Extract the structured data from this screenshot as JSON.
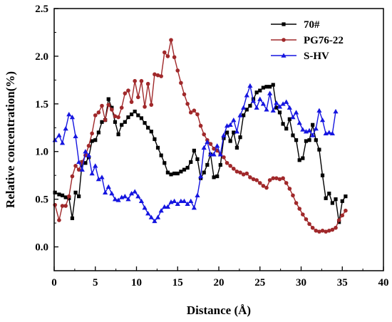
{
  "chart_data": {
    "type": "line",
    "title": "",
    "xlabel": "Distance (Å)",
    "ylabel": "Relative concentration(%)",
    "xlim": [
      0,
      40
    ],
    "ylim": [
      -0.25,
      2.5
    ],
    "x_ticks": [
      0,
      5,
      10,
      15,
      20,
      25,
      30,
      35,
      40
    ],
    "y_ticks": [
      0.0,
      0.5,
      1.0,
      1.5,
      2.0,
      2.5
    ],
    "x_tick_labels": [
      "0",
      "5",
      "10",
      "15",
      "20",
      "25",
      "30",
      "35",
      "40"
    ],
    "y_tick_labels": [
      "0.0",
      "0.5",
      "1.0",
      "1.5",
      "2.0",
      "2.5"
    ],
    "grid": false,
    "legend_position": "top-right",
    "series": [
      {
        "name": "70#",
        "color": "#000000",
        "marker": "square",
        "points": [
          [
            0.1,
            0.57
          ],
          [
            0.6,
            0.55
          ],
          [
            1.0,
            0.54
          ],
          [
            1.4,
            0.52
          ],
          [
            1.8,
            0.51
          ],
          [
            2.2,
            0.3
          ],
          [
            2.6,
            0.57
          ],
          [
            3.0,
            0.53
          ],
          [
            3.4,
            0.89
          ],
          [
            3.8,
            0.88
          ],
          [
            4.2,
            0.94
          ],
          [
            4.6,
            1.11
          ],
          [
            5.0,
            1.12
          ],
          [
            5.4,
            1.2
          ],
          [
            5.8,
            1.31
          ],
          [
            6.2,
            1.33
          ],
          [
            6.6,
            1.55
          ],
          [
            7.0,
            1.46
          ],
          [
            7.4,
            1.31
          ],
          [
            7.8,
            1.18
          ],
          [
            8.2,
            1.28
          ],
          [
            8.6,
            1.31
          ],
          [
            9.0,
            1.36
          ],
          [
            9.4,
            1.39
          ],
          [
            9.8,
            1.42
          ],
          [
            10.2,
            1.38
          ],
          [
            10.6,
            1.35
          ],
          [
            11.0,
            1.3
          ],
          [
            11.4,
            1.25
          ],
          [
            11.8,
            1.21
          ],
          [
            12.2,
            1.13
          ],
          [
            12.6,
            1.04
          ],
          [
            13.0,
            0.96
          ],
          [
            13.4,
            0.88
          ],
          [
            13.8,
            0.78
          ],
          [
            14.2,
            0.76
          ],
          [
            14.6,
            0.77
          ],
          [
            15.0,
            0.77
          ],
          [
            15.4,
            0.79
          ],
          [
            15.8,
            0.81
          ],
          [
            16.2,
            0.83
          ],
          [
            16.6,
            0.89
          ],
          [
            17.0,
            1.01
          ],
          [
            17.4,
            0.92
          ],
          [
            17.8,
            0.72
          ],
          [
            18.2,
            0.78
          ],
          [
            18.6,
            0.86
          ],
          [
            19.0,
            0.97
          ],
          [
            19.4,
            0.73
          ],
          [
            19.8,
            0.74
          ],
          [
            20.2,
            0.86
          ],
          [
            20.6,
            1.14
          ],
          [
            21.0,
            1.2
          ],
          [
            21.4,
            1.11
          ],
          [
            21.8,
            1.2
          ],
          [
            22.2,
            1.04
          ],
          [
            22.6,
            1.15
          ],
          [
            23.0,
            1.38
          ],
          [
            23.4,
            1.44
          ],
          [
            23.8,
            1.48
          ],
          [
            24.2,
            1.55
          ],
          [
            24.6,
            1.62
          ],
          [
            25.0,
            1.64
          ],
          [
            25.4,
            1.67
          ],
          [
            25.8,
            1.68
          ],
          [
            26.2,
            1.68
          ],
          [
            26.6,
            1.7
          ],
          [
            27.0,
            1.46
          ],
          [
            27.4,
            1.41
          ],
          [
            27.8,
            1.29
          ],
          [
            28.2,
            1.24
          ],
          [
            28.6,
            1.34
          ],
          [
            29.0,
            1.17
          ],
          [
            29.4,
            1.12
          ],
          [
            29.8,
            0.91
          ],
          [
            30.2,
            0.93
          ],
          [
            30.6,
            1.11
          ],
          [
            31.0,
            1.12
          ],
          [
            31.4,
            1.28
          ],
          [
            31.8,
            1.12
          ],
          [
            32.2,
            1.02
          ],
          [
            32.6,
            0.75
          ],
          [
            33.0,
            0.51
          ],
          [
            33.4,
            0.56
          ],
          [
            33.8,
            0.46
          ],
          [
            34.2,
            0.5
          ],
          [
            34.6,
            0.26
          ],
          [
            35.0,
            0.48
          ],
          [
            35.4,
            0.53
          ]
        ]
      },
      {
        "name": "PG76-22",
        "color": "#a0282a",
        "marker": "circle",
        "points": [
          [
            0.1,
            0.44
          ],
          [
            0.6,
            0.28
          ],
          [
            1.0,
            0.43
          ],
          [
            1.4,
            0.43
          ],
          [
            1.8,
            0.53
          ],
          [
            2.2,
            0.74
          ],
          [
            2.6,
            0.85
          ],
          [
            3.0,
            0.81
          ],
          [
            3.4,
            0.89
          ],
          [
            3.8,
            0.96
          ],
          [
            4.2,
            1.06
          ],
          [
            4.6,
            1.19
          ],
          [
            5.0,
            1.38
          ],
          [
            5.4,
            1.41
          ],
          [
            5.8,
            1.48
          ],
          [
            6.2,
            1.33
          ],
          [
            6.6,
            1.49
          ],
          [
            7.0,
            1.44
          ],
          [
            7.4,
            1.37
          ],
          [
            7.8,
            1.36
          ],
          [
            8.2,
            1.46
          ],
          [
            8.6,
            1.61
          ],
          [
            9.0,
            1.64
          ],
          [
            9.4,
            1.52
          ],
          [
            9.8,
            1.74
          ],
          [
            10.2,
            1.57
          ],
          [
            10.6,
            1.74
          ],
          [
            11.0,
            1.47
          ],
          [
            11.4,
            1.71
          ],
          [
            11.8,
            1.49
          ],
          [
            12.2,
            1.81
          ],
          [
            12.6,
            1.8
          ],
          [
            13.0,
            1.79
          ],
          [
            13.4,
            2.04
          ],
          [
            13.8,
            2.0
          ],
          [
            14.2,
            2.17
          ],
          [
            14.6,
            1.99
          ],
          [
            15.0,
            1.85
          ],
          [
            15.4,
            1.72
          ],
          [
            15.8,
            1.6
          ],
          [
            16.2,
            1.5
          ],
          [
            16.6,
            1.41
          ],
          [
            17.0,
            1.43
          ],
          [
            17.4,
            1.39
          ],
          [
            17.8,
            1.27
          ],
          [
            18.2,
            1.18
          ],
          [
            18.6,
            1.12
          ],
          [
            19.0,
            1.08
          ],
          [
            19.4,
            1.03
          ],
          [
            19.8,
            1.01
          ],
          [
            20.2,
            0.97
          ],
          [
            20.6,
            0.94
          ],
          [
            21.0,
            0.88
          ],
          [
            21.4,
            0.85
          ],
          [
            21.8,
            0.82
          ],
          [
            22.2,
            0.79
          ],
          [
            22.6,
            0.78
          ],
          [
            23.0,
            0.76
          ],
          [
            23.4,
            0.77
          ],
          [
            23.8,
            0.73
          ],
          [
            24.2,
            0.71
          ],
          [
            24.6,
            0.7
          ],
          [
            25.0,
            0.67
          ],
          [
            25.4,
            0.64
          ],
          [
            25.8,
            0.62
          ],
          [
            26.2,
            0.7
          ],
          [
            26.6,
            0.72
          ],
          [
            27.0,
            0.72
          ],
          [
            27.4,
            0.71
          ],
          [
            27.8,
            0.72
          ],
          [
            28.2,
            0.67
          ],
          [
            28.6,
            0.61
          ],
          [
            29.0,
            0.54
          ],
          [
            29.4,
            0.46
          ],
          [
            29.8,
            0.4
          ],
          [
            30.2,
            0.34
          ],
          [
            30.6,
            0.29
          ],
          [
            31.0,
            0.24
          ],
          [
            31.4,
            0.2
          ],
          [
            31.8,
            0.17
          ],
          [
            32.2,
            0.16
          ],
          [
            32.6,
            0.17
          ],
          [
            33.0,
            0.16
          ],
          [
            33.4,
            0.17
          ],
          [
            33.8,
            0.18
          ],
          [
            34.2,
            0.2
          ],
          [
            34.6,
            0.28
          ],
          [
            35.0,
            0.33
          ],
          [
            35.4,
            0.38
          ]
        ]
      },
      {
        "name": "S-HV",
        "color": "#1515e0",
        "marker": "triangle",
        "points": [
          [
            0.1,
            1.12
          ],
          [
            0.6,
            1.17
          ],
          [
            1.0,
            1.09
          ],
          [
            1.4,
            1.24
          ],
          [
            1.8,
            1.39
          ],
          [
            2.2,
            1.36
          ],
          [
            2.6,
            1.16
          ],
          [
            3.0,
            0.89
          ],
          [
            3.4,
            0.81
          ],
          [
            3.8,
            1.0
          ],
          [
            4.2,
            0.96
          ],
          [
            4.6,
            0.77
          ],
          [
            5.0,
            0.85
          ],
          [
            5.4,
            0.71
          ],
          [
            5.8,
            0.73
          ],
          [
            6.2,
            0.57
          ],
          [
            6.6,
            0.63
          ],
          [
            7.0,
            0.56
          ],
          [
            7.4,
            0.5
          ],
          [
            7.8,
            0.49
          ],
          [
            8.2,
            0.52
          ],
          [
            8.6,
            0.53
          ],
          [
            9.0,
            0.5
          ],
          [
            9.4,
            0.56
          ],
          [
            9.8,
            0.58
          ],
          [
            10.2,
            0.53
          ],
          [
            10.6,
            0.48
          ],
          [
            11.0,
            0.41
          ],
          [
            11.4,
            0.35
          ],
          [
            11.8,
            0.31
          ],
          [
            12.2,
            0.27
          ],
          [
            12.6,
            0.31
          ],
          [
            13.0,
            0.38
          ],
          [
            13.4,
            0.42
          ],
          [
            13.8,
            0.42
          ],
          [
            14.2,
            0.47
          ],
          [
            14.6,
            0.48
          ],
          [
            15.0,
            0.45
          ],
          [
            15.4,
            0.48
          ],
          [
            15.8,
            0.48
          ],
          [
            16.2,
            0.45
          ],
          [
            16.6,
            0.48
          ],
          [
            17.0,
            0.41
          ],
          [
            17.4,
            0.54
          ],
          [
            17.8,
            0.74
          ],
          [
            18.2,
            1.04
          ],
          [
            18.6,
            1.1
          ],
          [
            19.0,
            0.97
          ],
          [
            19.4,
            0.97
          ],
          [
            19.8,
            1.06
          ],
          [
            20.2,
            0.97
          ],
          [
            20.6,
            1.17
          ],
          [
            21.0,
            1.27
          ],
          [
            21.4,
            1.28
          ],
          [
            21.8,
            1.33
          ],
          [
            22.2,
            1.21
          ],
          [
            22.6,
            1.38
          ],
          [
            23.0,
            1.46
          ],
          [
            23.4,
            1.59
          ],
          [
            23.8,
            1.69
          ],
          [
            24.2,
            1.53
          ],
          [
            24.6,
            1.46
          ],
          [
            25.0,
            1.55
          ],
          [
            25.4,
            1.5
          ],
          [
            25.8,
            1.44
          ],
          [
            26.2,
            1.61
          ],
          [
            26.6,
            1.43
          ],
          [
            27.0,
            1.51
          ],
          [
            27.4,
            1.47
          ],
          [
            27.8,
            1.5
          ],
          [
            28.2,
            1.52
          ],
          [
            28.6,
            1.46
          ],
          [
            29.0,
            1.36
          ],
          [
            29.4,
            1.41
          ],
          [
            29.8,
            1.3
          ],
          [
            30.2,
            1.23
          ],
          [
            30.6,
            1.21
          ],
          [
            31.0,
            1.22
          ],
          [
            31.4,
            1.17
          ],
          [
            31.8,
            1.24
          ],
          [
            32.2,
            1.43
          ],
          [
            32.6,
            1.33
          ],
          [
            33.0,
            1.19
          ],
          [
            33.4,
            1.2
          ],
          [
            33.8,
            1.19
          ],
          [
            34.2,
            1.42
          ]
        ]
      }
    ]
  }
}
